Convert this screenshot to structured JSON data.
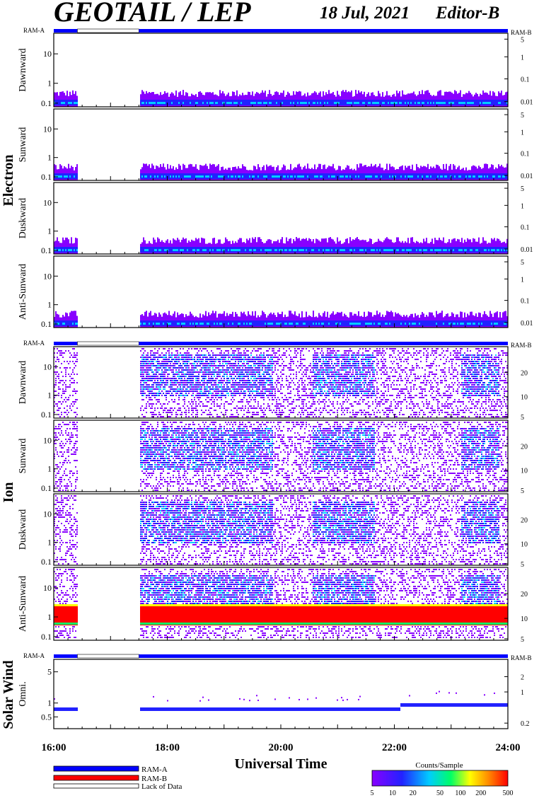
{
  "header": {
    "title": "GEOTAIL / LEP",
    "date": "18 Jul, 2021",
    "editor": "Editor-B"
  },
  "groups": {
    "electron": "Electron",
    "ion": "Ion",
    "solar_wind": "Solar Wind"
  },
  "ram_labels": {
    "a": "RAM-A",
    "b": "RAM-B"
  },
  "xaxis": {
    "label": "Universal Time",
    "ticks": [
      "16:00",
      "18:00",
      "20:00",
      "22:00",
      "24:00"
    ]
  },
  "legend": {
    "ram_a": "RAM-A",
    "ram_b": "RAM-B",
    "lack": "Lack of Data",
    "colorbar_title": "Counts/Sample",
    "colorbar_ticks": [
      "5",
      "10",
      "20",
      "50",
      "100",
      "200",
      "500"
    ]
  },
  "colors": {
    "ram_a": "#0000ff",
    "ram_b": "#ff0000",
    "colormap": [
      "#ffffff",
      "#8800ff",
      "#2222ff",
      "#00ccff",
      "#00ff66",
      "#ffff00",
      "#ff8800",
      "#ff0000"
    ]
  },
  "chart_data": [
    {
      "type": "heatmap",
      "group": "Electron",
      "panel": "Dawnward",
      "ylabel": "Dawnward",
      "left_ticks": [
        "10",
        "1",
        "0.1"
      ],
      "right_ticks": [
        "5",
        "1",
        "0.1",
        "0.01"
      ],
      "x_range": [
        "16:00",
        "24:00"
      ],
      "data_gap": [
        "16:25",
        "17:30"
      ],
      "ram_mode": "RAM-A"
    },
    {
      "type": "heatmap",
      "group": "Electron",
      "panel": "Sunward",
      "ylabel": "Sunward",
      "left_ticks": [
        "10",
        "1",
        "0.1"
      ],
      "right_ticks": [
        "5",
        "1",
        "0.1",
        "0.01"
      ],
      "x_range": [
        "16:00",
        "24:00"
      ],
      "data_gap": [
        "16:25",
        "17:30"
      ],
      "ram_mode": "RAM-A"
    },
    {
      "type": "heatmap",
      "group": "Electron",
      "panel": "Duskward",
      "ylabel": "Duskward",
      "left_ticks": [
        "10",
        "1",
        "0.1"
      ],
      "right_ticks": [
        "5",
        "1",
        "0.1",
        "0.01"
      ],
      "x_range": [
        "16:00",
        "24:00"
      ],
      "data_gap": [
        "16:25",
        "17:30"
      ],
      "ram_mode": "RAM-A"
    },
    {
      "type": "heatmap",
      "group": "Electron",
      "panel": "Anti-Sunward",
      "ylabel": "Anti-Sunward",
      "left_ticks": [
        "10",
        "1",
        "0.1"
      ],
      "right_ticks": [
        "5",
        "1",
        "0.1",
        "0.01"
      ],
      "x_range": [
        "16:00",
        "24:00"
      ],
      "data_gap": [
        "16:25",
        "17:30"
      ],
      "ram_mode": "RAM-A"
    },
    {
      "type": "heatmap",
      "group": "Ion",
      "panel": "Dawnward",
      "ylabel": "Dawnward",
      "left_ticks": [
        "10",
        "1",
        "0.1"
      ],
      "right_ticks": [
        "20",
        "10",
        "5"
      ],
      "x_range": [
        "16:00",
        "24:00"
      ],
      "data_gap": [
        "16:25",
        "17:30"
      ],
      "ram_mode": "RAM-A"
    },
    {
      "type": "heatmap",
      "group": "Ion",
      "panel": "Sunward",
      "ylabel": "Sunward",
      "left_ticks": [
        "10",
        "1",
        "0.1"
      ],
      "right_ticks": [
        "20",
        "10",
        "5"
      ],
      "x_range": [
        "16:00",
        "24:00"
      ],
      "data_gap": [
        "16:25",
        "17:30"
      ],
      "ram_mode": "RAM-A"
    },
    {
      "type": "heatmap",
      "group": "Ion",
      "panel": "Duskward",
      "ylabel": "Duskward",
      "left_ticks": [
        "10",
        "1",
        "0.1"
      ],
      "right_ticks": [
        "20",
        "10",
        "5"
      ],
      "x_range": [
        "16:00",
        "24:00"
      ],
      "data_gap": [
        "16:25",
        "17:30"
      ],
      "ram_mode": "RAM-A"
    },
    {
      "type": "heatmap",
      "group": "Ion",
      "panel": "Anti-Sunward",
      "ylabel": "Anti-Sunward",
      "left_ticks": [
        "10",
        "1",
        "0.1"
      ],
      "right_ticks": [
        "20",
        "10",
        "5"
      ],
      "x_range": [
        "16:00",
        "24:00"
      ],
      "data_gap": [
        "16:25",
        "17:30"
      ],
      "ram_mode": "RAM-A"
    },
    {
      "type": "heatmap",
      "group": "Solar Wind",
      "panel": "Omni.",
      "ylabel": "Omni.",
      "left_ticks": [
        "5",
        "1",
        "0.5"
      ],
      "right_ticks": [
        "2",
        "1",
        "0.2"
      ],
      "x_range": [
        "16:00",
        "24:00"
      ],
      "data_gap": [
        "16:25",
        "17:30"
      ],
      "ram_mode": "RAM-A"
    }
  ]
}
